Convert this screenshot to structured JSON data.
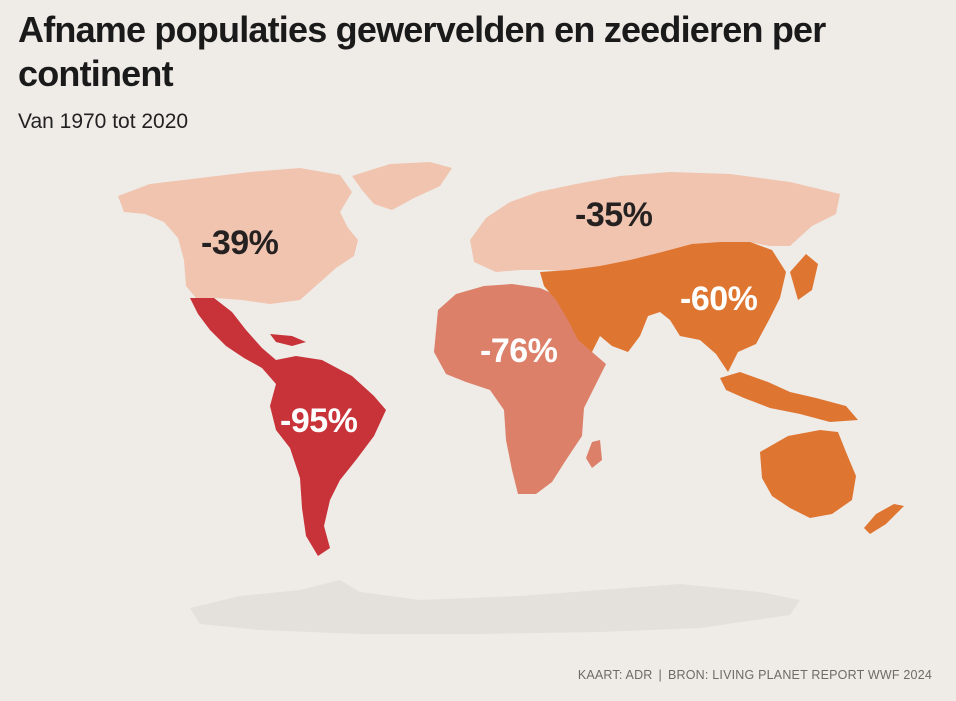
{
  "title": "Afname populaties gewervelden en zeedieren per continent",
  "subtitle": "Van 1970 tot 2020",
  "regions": [
    {
      "id": "north-america",
      "value": "-39%",
      "color": "#f0c4af"
    },
    {
      "id": "europe-asia",
      "value": "-35%",
      "color": "#f0c4af"
    },
    {
      "id": "latin-america",
      "value": "-95%",
      "color": "#c8333a"
    },
    {
      "id": "africa",
      "value": "-76%",
      "color": "#dc806a"
    },
    {
      "id": "asia-pacific",
      "value": "-60%",
      "color": "#de7530"
    }
  ],
  "antarctica_color": "#e4e0dc",
  "source": {
    "map_credit": "KAART: ADR",
    "separator": "|",
    "data_source": "BRON: LIVING PLANET REPORT WWF 2024"
  }
}
